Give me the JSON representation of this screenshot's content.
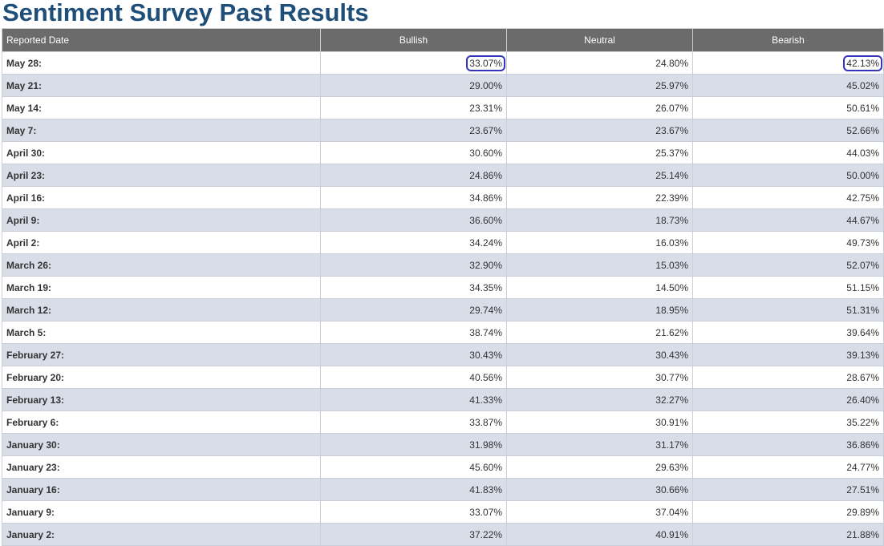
{
  "page": {
    "title": "Sentiment Survey Past Results"
  },
  "table": {
    "headers": {
      "date": "Reported Date",
      "bullish": "Bullish",
      "neutral": "Neutral",
      "bearish": "Bearish"
    },
    "rows": [
      {
        "date": "May 28:",
        "bullish": "33.07%",
        "neutral": "24.80%",
        "bearish": "42.13%"
      },
      {
        "date": "May 21:",
        "bullish": "29.00%",
        "neutral": "25.97%",
        "bearish": "45.02%"
      },
      {
        "date": "May 14:",
        "bullish": "23.31%",
        "neutral": "26.07%",
        "bearish": "50.61%"
      },
      {
        "date": "May 7:",
        "bullish": "23.67%",
        "neutral": "23.67%",
        "bearish": "52.66%"
      },
      {
        "date": "April 30:",
        "bullish": "30.60%",
        "neutral": "25.37%",
        "bearish": "44.03%"
      },
      {
        "date": "April 23:",
        "bullish": "24.86%",
        "neutral": "25.14%",
        "bearish": "50.00%"
      },
      {
        "date": "April 16:",
        "bullish": "34.86%",
        "neutral": "22.39%",
        "bearish": "42.75%"
      },
      {
        "date": "April 9:",
        "bullish": "36.60%",
        "neutral": "18.73%",
        "bearish": "44.67%"
      },
      {
        "date": "April 2:",
        "bullish": "34.24%",
        "neutral": "16.03%",
        "bearish": "49.73%"
      },
      {
        "date": "March 26:",
        "bullish": "32.90%",
        "neutral": "15.03%",
        "bearish": "52.07%"
      },
      {
        "date": "March 19:",
        "bullish": "34.35%",
        "neutral": "14.50%",
        "bearish": "51.15%"
      },
      {
        "date": "March 12:",
        "bullish": "29.74%",
        "neutral": "18.95%",
        "bearish": "51.31%"
      },
      {
        "date": "March 5:",
        "bullish": "38.74%",
        "neutral": "21.62%",
        "bearish": "39.64%"
      },
      {
        "date": "February 27:",
        "bullish": "30.43%",
        "neutral": "30.43%",
        "bearish": "39.13%"
      },
      {
        "date": "February 20:",
        "bullish": "40.56%",
        "neutral": "30.77%",
        "bearish": "28.67%"
      },
      {
        "date": "February 13:",
        "bullish": "41.33%",
        "neutral": "32.27%",
        "bearish": "26.40%"
      },
      {
        "date": "February 6:",
        "bullish": "33.87%",
        "neutral": "30.91%",
        "bearish": "35.22%"
      },
      {
        "date": "January 30:",
        "bullish": "31.98%",
        "neutral": "31.17%",
        "bearish": "36.86%"
      },
      {
        "date": "January 23:",
        "bullish": "45.60%",
        "neutral": "29.63%",
        "bearish": "24.77%"
      },
      {
        "date": "January 16:",
        "bullish": "41.83%",
        "neutral": "30.66%",
        "bearish": "27.51%"
      },
      {
        "date": "January 9:",
        "bullish": "33.07%",
        "neutral": "37.04%",
        "bearish": "29.89%"
      },
      {
        "date": "January 2:",
        "bullish": "37.22%",
        "neutral": "40.91%",
        "bearish": "21.88%"
      }
    ]
  },
  "annotations": {
    "highlight_color": "#3333bb"
  },
  "colors": {
    "title": "#1f4e79",
    "header_bg": "#6b6b6b",
    "row_alt_bg": "#d8dde8"
  }
}
